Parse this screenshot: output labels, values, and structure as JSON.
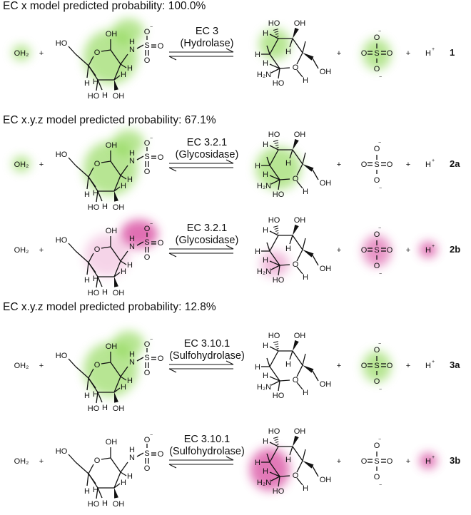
{
  "sections": [
    {
      "heading": "EC x model predicted probability: 100.0%"
    },
    {
      "heading": "EC x.y.z model predicted probability: 67.1%"
    },
    {
      "heading": "EC x.y.z model predicted probability: 12.8%"
    }
  ],
  "labels": {
    "water": "OH₂",
    "plus": "+",
    "oh": "OH",
    "ho": "HO",
    "h": "H",
    "n": "N",
    "s": "S",
    "o": "O",
    "h2n": "H₂N",
    "minus": "−",
    "proton": "H",
    "charge_plus": "+"
  },
  "colors": {
    "green": "#7dd13a",
    "magenta": "#d6409a"
  },
  "reactions": [
    {
      "id": "1",
      "ec": "EC 3",
      "enzyme": "(Hydrolase)",
      "highlight": "green",
      "hl": [
        "water",
        "sub-ring",
        "sub-n",
        "prod-upper",
        "sulfate"
      ]
    },
    {
      "id": "2a",
      "ec": "EC 3.2.1",
      "enzyme": "(Glycosidase)",
      "highlight": "green",
      "hl": [
        "water",
        "sub-ring",
        "sub-n",
        "prod-ring"
      ]
    },
    {
      "id": "2b",
      "ec": "EC 3.2.1",
      "enzyme": "(Glycosidase)",
      "highlight": "magenta",
      "hl": [
        "sub-ring-light",
        "sub-ns",
        "prod-lower",
        "sulfate",
        "proton"
      ]
    },
    {
      "id": "3a",
      "ec": "EC 3.10.1",
      "enzyme": "(Sulfohydrolase)",
      "highlight": "green",
      "hl": [
        "sub-ring",
        "sub-n",
        "sulfate"
      ]
    },
    {
      "id": "3b",
      "ec": "EC 3.10.1",
      "enzyme": "(Sulfohydrolase)",
      "highlight": "magenta",
      "hl": [
        "prod-ring-left",
        "proton"
      ]
    }
  ]
}
